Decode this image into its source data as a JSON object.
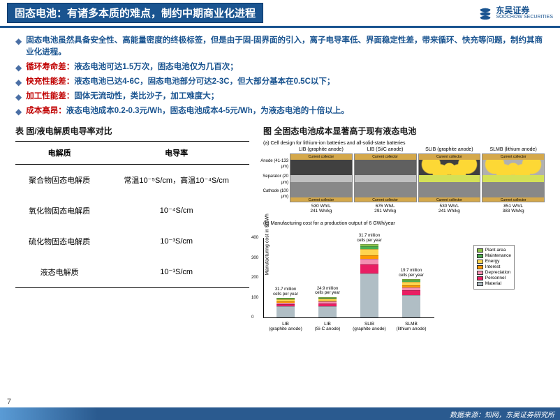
{
  "header": {
    "title": "固态电池：有诸多本质的难点，制约中期商业化进程",
    "logo_cn": "东吴证券",
    "logo_en": "SOOCHOW SECURITIES"
  },
  "bullets": [
    {
      "highlight": "",
      "text": "固态电池虽然具备安全性、高能量密度的终极标签，但是由于固-固界面的引入，离子电导率低、界面稳定性差，带来循环、快充等问题，制约其商业化进程。"
    },
    {
      "highlight": "循环寿命差：",
      "text": "液态电池可达1.5万次，固态电池仅为几百次；"
    },
    {
      "highlight": "快充性能差：",
      "text": "液态电池已达4-6C，固态电池部分可达2-3C，但大部分基本在0.5C以下；"
    },
    {
      "highlight": "加工性能差：",
      "text": "固体无流动性，类比沙子，加工难度大；"
    },
    {
      "highlight": "成本高昂：",
      "text": "液态电池成本0.2-0.3元/Wh，固态电池成本4-5元/Wh，为液态电池的十倍以上。"
    }
  ],
  "table": {
    "title": "表 固/液电解质电导率对比",
    "headers": [
      "电解质",
      "电导率"
    ],
    "rows": [
      [
        "聚合物固态电解质",
        "常温10⁻⁵S/cm，高温10⁻⁴S/cm"
      ],
      [
        "氧化物固态电解质",
        "10⁻⁴S/cm"
      ],
      [
        "硫化物固态电解质",
        "10⁻³S/cm"
      ],
      [
        "液态电解质",
        "10⁻¹S/cm"
      ]
    ]
  },
  "figure": {
    "title": "图 全固态电池成本显著高于现有液态电池",
    "fig_a_title": "(a) Cell design for lithium-ion batteries and all-solid-state batteries",
    "side_labels": [
      "Anode\n(41-133 μm)",
      "Separator\n(20 μm)",
      "Cathode\n(100 μm)"
    ],
    "cc_label": "Current collector",
    "cells": [
      {
        "name": "LIB (graphite anode)",
        "wh_l": "530 Wh/L",
        "wh_kg": "241 Wh/kg",
        "anode_color": "#404040",
        "sep_style": "porous",
        "sep_color": "#c0c0c0"
      },
      {
        "name": "LIB (Si/C anode)",
        "wh_l": "676 Wh/L",
        "wh_kg": "291 Wh/kg",
        "anode_color": "#606060",
        "sep_style": "porous",
        "sep_color": "#c0c0c0"
      },
      {
        "name": "SLIB (graphite anode)",
        "wh_l": "530 Wh/L",
        "wh_kg": "241 Wh/kg",
        "anode_color": "#404040",
        "sep_style": "solid",
        "sep_color": "#d4e157"
      },
      {
        "name": "SLMB (lithium anode)",
        "wh_l": "851 Wh/L",
        "wh_kg": "383 Wh/kg",
        "anode_color": "#b0b0b0",
        "sep_style": "solid",
        "sep_color": "#d4e157"
      }
    ],
    "fig_b_title": "(b) Manufacturing cost for a production output of 6 GWh/year",
    "y_label": "Manufacturing cost in $/kWh",
    "ylim": [
      0,
      400
    ],
    "yticks": [
      0,
      100,
      200,
      300,
      400
    ],
    "bars": [
      {
        "label": "LIB",
        "sub": "(graphite anode)",
        "top": "31.7 million\ncells per year",
        "segs": [
          55,
          13,
          7,
          5,
          10,
          4,
          2
        ],
        "total": 96
      },
      {
        "label": "LIB",
        "sub": "(Si-C anode)",
        "top": "24.9 million\ncells per year",
        "segs": [
          56,
          15,
          8,
          5,
          11,
          4,
          2
        ],
        "total": 101
      },
      {
        "label": "SLIB",
        "sub": "(graphite anode)",
        "top": "31.7 million\ncells per year",
        "segs": [
          220,
          45,
          28,
          18,
          30,
          15,
          8
        ],
        "total": 364
      },
      {
        "label": "SLMB",
        "sub": "(lithium anode)",
        "top": "19.7 million\ncells per year",
        "segs": [
          110,
          25,
          15,
          10,
          18,
          8,
          4
        ],
        "total": 190
      }
    ],
    "legend": [
      {
        "label": "Plant area",
        "color": "#8bc34a"
      },
      {
        "label": "Maintenance",
        "color": "#4caf50"
      },
      {
        "label": "Energy",
        "color": "#ffd54f"
      },
      {
        "label": "Interest",
        "color": "#ff9800"
      },
      {
        "label": "Depreciation",
        "color": "#f48fb1"
      },
      {
        "label": "Personnel",
        "color": "#e91e63"
      },
      {
        "label": "Material",
        "color": "#b0bec5"
      }
    ]
  },
  "footer": {
    "source": "数据来源：知网，东吴证券研究所",
    "page": "7"
  },
  "colors": {
    "primary": "#1a5490",
    "accent": "#c00000",
    "footer": "#2a5a8f"
  }
}
